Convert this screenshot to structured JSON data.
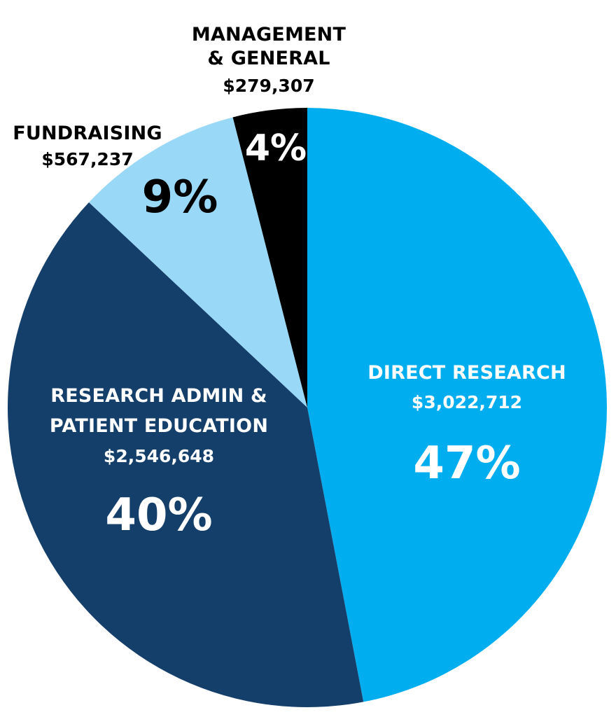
{
  "chart_data": {
    "type": "pie",
    "slices": [
      {
        "name_lines": [
          "DIRECT RESEARCH"
        ],
        "amount": "$3,022,712",
        "percent_label": "47%",
        "value": 47,
        "color": "#00aeef",
        "label_color": "#ffffff"
      },
      {
        "name_lines": [
          "RESEARCH ADMIN &",
          "PATIENT EDUCATION"
        ],
        "amount": "$2,546,648",
        "percent_label": "40%",
        "value": 40,
        "color": "#143f6b",
        "label_color": "#ffffff"
      },
      {
        "name_lines": [
          "FUNDRAISING"
        ],
        "amount": "$567,237",
        "percent_label": "9%",
        "value": 9,
        "color": "#99d9f7",
        "label_color": "#000000"
      },
      {
        "name_lines": [
          "MANAGEMENT",
          "& GENERAL"
        ],
        "amount": "$279,307",
        "percent_label": "4%",
        "value": 4,
        "color": "#000000",
        "label_color": "#ffffff"
      }
    ]
  }
}
